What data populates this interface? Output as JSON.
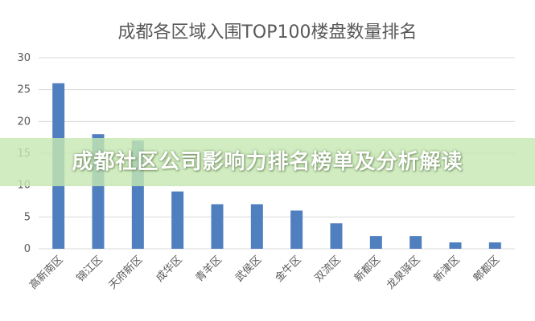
{
  "banner": {
    "text": "成都社区公司影响力排名榜单及分析解读"
  },
  "colors": {
    "bar": "#4f7fbf",
    "grid": "#d9d9d9",
    "axis_text": "#595959",
    "banner_bg": "#c6e8b2",
    "banner_text": "#ffffff"
  },
  "chart_data": {
    "type": "bar",
    "title": "成都各区域入围TOP100楼盘数量排名",
    "xlabel": "",
    "ylabel": "",
    "ylim": [
      0,
      30
    ],
    "yticks": [
      0,
      5,
      10,
      15,
      20,
      25,
      30
    ],
    "grid": true,
    "legend": "none",
    "categories": [
      "高新南区",
      "锦江区",
      "天府新区",
      "成华区",
      "青羊区",
      "武侯区",
      "金牛区",
      "双流区",
      "新都区",
      "龙泉驿区",
      "新津区",
      "郫都区"
    ],
    "values": [
      26,
      18,
      17,
      9,
      7,
      7,
      6,
      4,
      2,
      2,
      1,
      1
    ]
  }
}
